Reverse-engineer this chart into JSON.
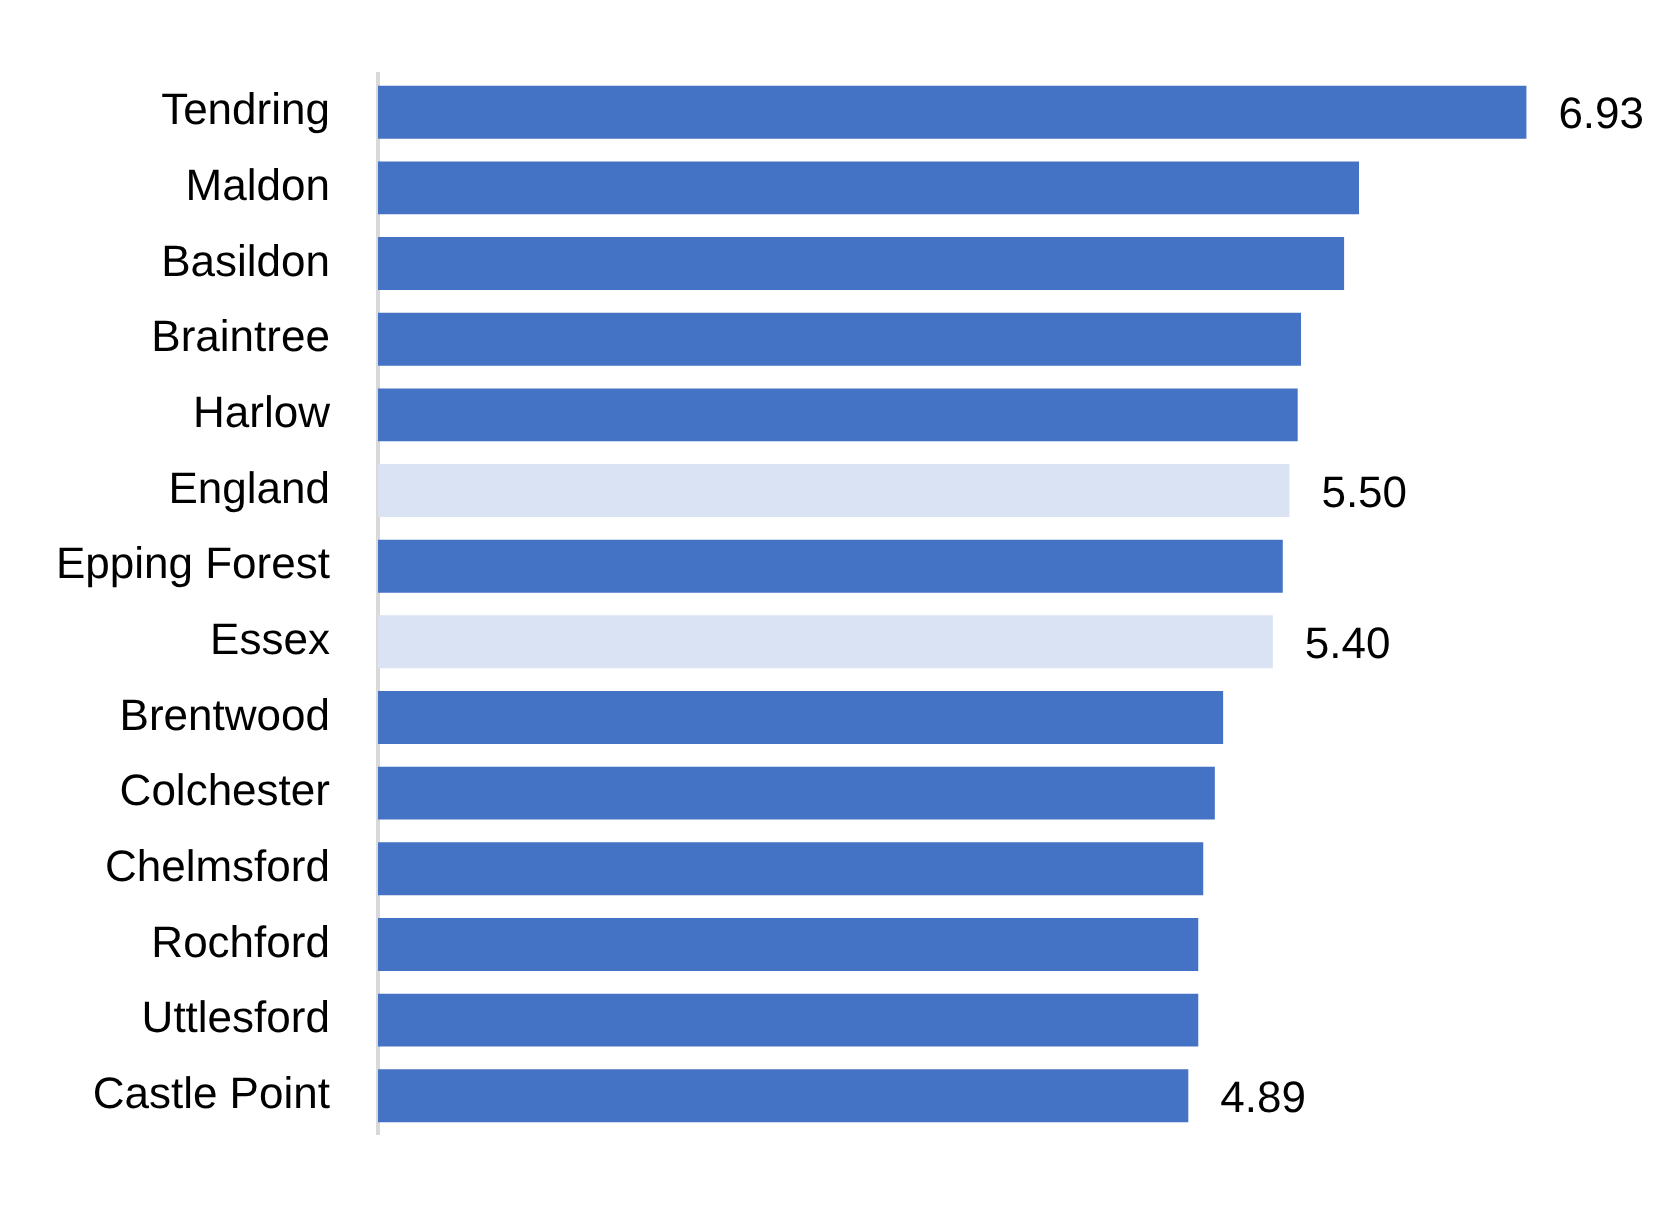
{
  "chart_data": {
    "type": "bar",
    "orientation": "horizontal",
    "categories": [
      "Tendring",
      "Maldon",
      "Basildon",
      "Braintree",
      "Harlow",
      "England",
      "Epping Forest",
      "Essex",
      "Brentwood",
      "Colchester",
      "Chelmsford",
      "Rochford",
      "Uttlesford",
      "Castle Point"
    ],
    "values": [
      6.93,
      5.92,
      5.83,
      5.57,
      5.55,
      5.5,
      5.46,
      5.4,
      5.1,
      5.05,
      4.98,
      4.95,
      4.95,
      4.89
    ],
    "colors": [
      "#4472c4",
      "#4472c4",
      "#4472c4",
      "#4472c4",
      "#4472c4",
      "#dae3f3",
      "#4472c4",
      "#dae3f3",
      "#4472c4",
      "#4472c4",
      "#4472c4",
      "#4472c4",
      "#4472c4",
      "#4472c4"
    ],
    "value_labels": [
      "6.93",
      null,
      null,
      null,
      null,
      "5.50",
      null,
      "5.40",
      null,
      null,
      null,
      null,
      null,
      "4.89"
    ],
    "tick_labels": "y",
    "legend": false
  }
}
